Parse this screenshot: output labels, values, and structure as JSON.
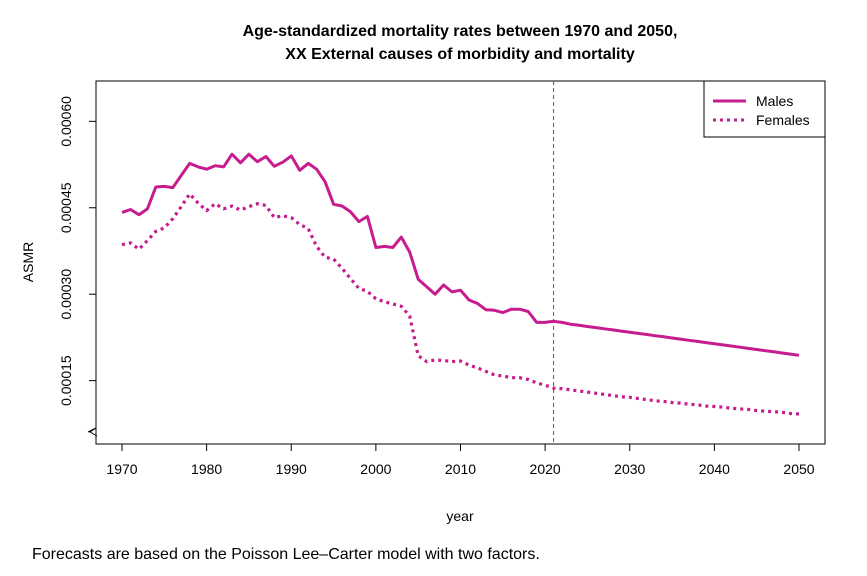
{
  "chart_data": {
    "type": "line",
    "title": "Age-standardized mortality rates between 1970 and 2050,",
    "subtitle": "XX External causes of morbidity and mortality",
    "xlabel": "year",
    "ylabel": "ASMR",
    "xlim": [
      1970,
      2050
    ],
    "ylim": [
      4e-05,
      0.00067
    ],
    "x_ticks": [
      "1970",
      "1980",
      "1990",
      "2000",
      "2010",
      "2020",
      "2030",
      "2040",
      "2050"
    ],
    "y_ticks": [
      "0.00015",
      "0.00030",
      "0.00045",
      "0.00060"
    ],
    "forecast_start_year": 2021,
    "legend_position": "top-right",
    "series": [
      {
        "name": "Males",
        "color": "#C71C8E",
        "style": "solid",
        "x": [
          1970,
          1971,
          1972,
          1973,
          1974,
          1975,
          1976,
          1977,
          1978,
          1979,
          1980,
          1981,
          1982,
          1983,
          1984,
          1985,
          1986,
          1987,
          1988,
          1989,
          1990,
          1991,
          1992,
          1993,
          1994,
          1995,
          1996,
          1997,
          1998,
          1999,
          2000,
          2001,
          2002,
          2003,
          2004,
          2005,
          2006,
          2007,
          2008,
          2009,
          2010,
          2011,
          2012,
          2013,
          2014,
          2015,
          2016,
          2017,
          2018,
          2019,
          2020,
          2021,
          2022,
          2023,
          2024,
          2025,
          2026,
          2027,
          2028,
          2029,
          2030,
          2031,
          2032,
          2033,
          2034,
          2035,
          2036,
          2037,
          2038,
          2039,
          2040,
          2041,
          2042,
          2043,
          2044,
          2045,
          2046,
          2047,
          2048,
          2049,
          2050
        ],
        "y": [
          0.000442,
          0.000447,
          0.000438,
          0.000448,
          0.000486,
          0.000487,
          0.000485,
          0.000506,
          0.000527,
          0.000521,
          0.000517,
          0.000523,
          0.000521,
          0.000543,
          0.000528,
          0.000543,
          0.00053,
          0.000539,
          0.000522,
          0.000529,
          0.00054,
          0.000515,
          0.000527,
          0.000517,
          0.000495,
          0.000456,
          0.000453,
          0.000443,
          0.000426,
          0.000435,
          0.000381,
          0.000383,
          0.000381,
          0.000399,
          0.000373,
          0.000326,
          0.000313,
          0.0003,
          0.000316,
          0.000304,
          0.000307,
          0.00029,
          0.000284,
          0.000273,
          0.000272,
          0.000268,
          0.000274,
          0.000274,
          0.00027,
          0.000251,
          0.000251,
          0.000253,
          0.000251,
          0.000248,
          0.000246,
          0.000244,
          0.000242,
          0.00024,
          0.000238,
          0.000236,
          0.000234,
          0.000232,
          0.00023,
          0.000228,
          0.000226,
          0.000224,
          0.000222,
          0.00022,
          0.000218,
          0.000216,
          0.000214,
          0.000212,
          0.00021,
          0.000208,
          0.000206,
          0.000204,
          0.000202,
          0.0002,
          0.000198,
          0.000196,
          0.000194
        ]
      },
      {
        "name": "Females",
        "color": "#C71C8E",
        "style": "dotted",
        "x": [
          1970,
          1971,
          1972,
          1973,
          1974,
          1975,
          1976,
          1977,
          1978,
          1979,
          1980,
          1981,
          1982,
          1983,
          1984,
          1985,
          1986,
          1987,
          1988,
          1989,
          1990,
          1991,
          1992,
          1993,
          1994,
          1995,
          1996,
          1997,
          1998,
          1999,
          2000,
          2001,
          2002,
          2003,
          2004,
          2005,
          2006,
          2007,
          2008,
          2009,
          2010,
          2011,
          2012,
          2013,
          2014,
          2015,
          2016,
          2017,
          2018,
          2019,
          2020,
          2021,
          2022,
          2023,
          2024,
          2025,
          2026,
          2027,
          2028,
          2029,
          2030,
          2031,
          2032,
          2033,
          2034,
          2035,
          2036,
          2037,
          2038,
          2039,
          2040,
          2041,
          2042,
          2043,
          2044,
          2045,
          2046,
          2047,
          2048,
          2049,
          2050
        ],
        "y": [
          0.000386,
          0.000389,
          0.000378,
          0.000393,
          0.000409,
          0.000415,
          0.000431,
          0.000452,
          0.000474,
          0.000458,
          0.000445,
          0.000457,
          0.000448,
          0.000453,
          0.000446,
          0.000452,
          0.000457,
          0.000454,
          0.000433,
          0.000436,
          0.000433,
          0.000421,
          0.000414,
          0.000383,
          0.000364,
          0.000361,
          0.000345,
          0.000327,
          0.00031,
          0.000305,
          0.000292,
          0.000287,
          0.000283,
          0.000279,
          0.000262,
          0.000193,
          0.000183,
          0.000186,
          0.000185,
          0.000183,
          0.000184,
          0.000177,
          0.000172,
          0.000166,
          0.00016,
          0.000158,
          0.000155,
          0.000155,
          0.000152,
          0.000146,
          0.000142,
          0.000137,
          0.000136,
          0.000134,
          0.000132,
          0.00013,
          0.000128,
          0.000126,
          0.000124,
          0.000122,
          0.000121,
          0.000119,
          0.000117,
          0.000115,
          0.000114,
          0.000112,
          0.000111,
          0.000109,
          0.000108,
          0.000106,
          0.000105,
          0.000104,
          0.000102,
          0.000101,
          0.0001,
          9.8e-05,
          9.7e-05,
          9.6e-05,
          9.5e-05,
          9.3e-05,
          9.2e-05
        ]
      }
    ]
  },
  "caption": "Forecasts are based on the Poisson Lee–Carter model with two factors."
}
